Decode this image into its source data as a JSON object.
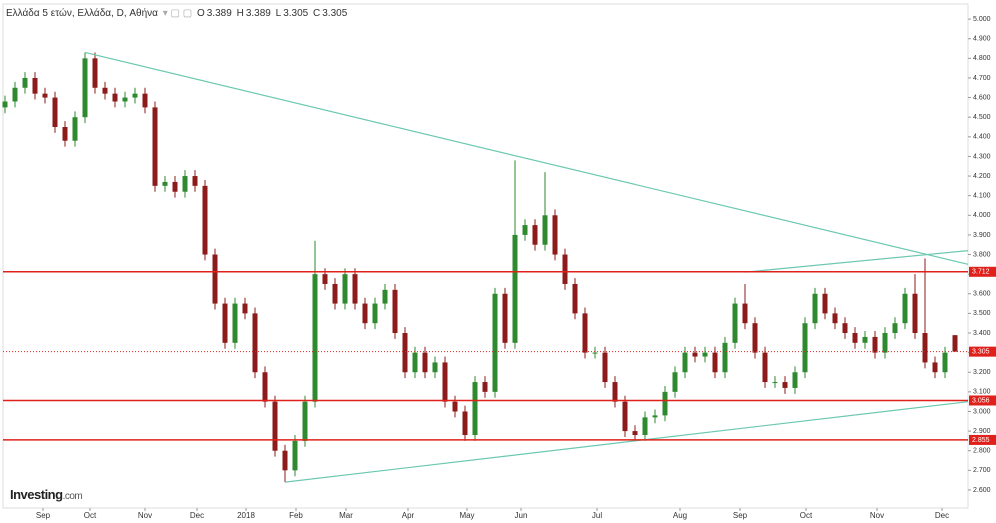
{
  "chart_data": {
    "type": "candlestick",
    "title": "Ελλάδα 5 ετών, Ελλάδα, D, Αθήνα",
    "ohlc_prefixes": [
      "O",
      "H",
      "L",
      "C"
    ],
    "brand": "Investing",
    "brand_suffix": ".com",
    "up_color": "#2f8a2f",
    "down_color": "#8e1b1b",
    "open": [
      4.55,
      4.58,
      4.65,
      4.7,
      4.62,
      4.6,
      4.45,
      4.38,
      4.5,
      4.8,
      4.65,
      4.62,
      4.58,
      4.6,
      4.62,
      4.55,
      4.15,
      4.17,
      4.12,
      4.2,
      4.15,
      3.8,
      3.55,
      3.35,
      3.55,
      3.5,
      3.2,
      3.05,
      2.8,
      2.7,
      2.85,
      3.05,
      3.7,
      3.65,
      3.55,
      3.7,
      3.55,
      3.45,
      3.55,
      3.62,
      3.4,
      3.2,
      3.3,
      3.2,
      3.25,
      3.05,
      3.0,
      2.88,
      3.15,
      3.1,
      3.6,
      3.35,
      3.9,
      3.95,
      3.85,
      4.0,
      3.8,
      3.65,
      3.5,
      3.3,
      3.3,
      3.15,
      3.05,
      2.9,
      2.88,
      2.97,
      2.98,
      3.1,
      3.2,
      3.3,
      3.28,
      3.3,
      3.2,
      3.35,
      3.55,
      3.45,
      3.3,
      3.15,
      3.15,
      3.12,
      3.2,
      3.45,
      3.6,
      3.5,
      3.45,
      3.4,
      3.35,
      3.38,
      3.3,
      3.4,
      3.45,
      3.6,
      3.4,
      3.25,
      3.2,
      3.389
    ],
    "high": [
      4.61,
      4.68,
      4.73,
      4.73,
      4.65,
      4.63,
      4.48,
      4.53,
      4.83,
      4.83,
      4.68,
      4.65,
      4.63,
      4.65,
      4.65,
      4.58,
      4.2,
      4.2,
      4.23,
      4.23,
      4.18,
      3.83,
      3.58,
      3.58,
      3.58,
      3.53,
      3.23,
      3.08,
      2.83,
      2.88,
      3.08,
      3.87,
      3.73,
      3.68,
      3.73,
      3.73,
      3.58,
      3.58,
      3.65,
      3.65,
      3.43,
      3.33,
      3.33,
      3.28,
      3.28,
      3.08,
      3.03,
      3.18,
      3.18,
      3.63,
      3.63,
      4.28,
      3.98,
      3.98,
      4.22,
      4.03,
      3.83,
      3.68,
      3.53,
      3.33,
      3.33,
      3.18,
      3.08,
      2.93,
      3.0,
      3.01,
      3.13,
      3.23,
      3.33,
      3.33,
      3.33,
      3.33,
      3.38,
      3.58,
      3.65,
      3.48,
      3.33,
      3.18,
      3.18,
      3.23,
      3.48,
      3.63,
      3.63,
      3.53,
      3.48,
      3.43,
      3.41,
      3.41,
      3.43,
      3.48,
      3.63,
      3.7,
      3.78,
      3.28,
      3.33,
      3.389
    ],
    "low": [
      4.52,
      4.55,
      4.62,
      4.59,
      4.57,
      4.42,
      4.35,
      4.35,
      4.47,
      4.62,
      4.59,
      4.55,
      4.55,
      4.57,
      4.52,
      4.12,
      4.12,
      4.09,
      4.09,
      4.12,
      3.77,
      3.52,
      3.32,
      3.32,
      3.47,
      3.17,
      3.02,
      2.77,
      2.64,
      2.67,
      2.82,
      3.02,
      3.62,
      3.52,
      3.52,
      3.52,
      3.42,
      3.42,
      3.52,
      3.37,
      3.17,
      3.17,
      3.17,
      3.17,
      3.02,
      2.97,
      2.85,
      2.85,
      3.07,
      3.07,
      3.32,
      3.32,
      3.87,
      3.82,
      3.82,
      3.77,
      3.62,
      3.47,
      3.27,
      3.27,
      3.12,
      3.02,
      2.87,
      2.85,
      2.85,
      2.94,
      2.95,
      3.07,
      3.17,
      3.25,
      3.25,
      3.17,
      3.17,
      3.32,
      3.42,
      3.27,
      3.12,
      3.12,
      3.09,
      3.09,
      3.17,
      3.42,
      3.47,
      3.42,
      3.37,
      3.32,
      3.32,
      3.27,
      3.27,
      3.37,
      3.42,
      3.37,
      3.22,
      3.17,
      3.17,
      3.305
    ],
    "close": [
      4.58,
      4.65,
      4.7,
      4.62,
      4.6,
      4.45,
      4.38,
      4.5,
      4.8,
      4.65,
      4.62,
      4.58,
      4.6,
      4.62,
      4.55,
      4.15,
      4.17,
      4.12,
      4.2,
      4.15,
      3.8,
      3.55,
      3.35,
      3.55,
      3.5,
      3.2,
      3.05,
      2.8,
      2.7,
      2.85,
      3.05,
      3.7,
      3.65,
      3.55,
      3.7,
      3.55,
      3.45,
      3.55,
      3.62,
      3.4,
      3.2,
      3.3,
      3.2,
      3.25,
      3.05,
      3.0,
      2.88,
      3.15,
      3.1,
      3.6,
      3.35,
      3.9,
      3.95,
      3.85,
      4.0,
      3.8,
      3.65,
      3.5,
      3.3,
      3.3,
      3.15,
      3.05,
      2.9,
      2.88,
      2.97,
      2.98,
      3.1,
      3.2,
      3.3,
      3.28,
      3.3,
      3.2,
      3.35,
      3.55,
      3.45,
      3.3,
      3.15,
      3.15,
      3.12,
      3.2,
      3.45,
      3.6,
      3.5,
      3.45,
      3.4,
      3.35,
      3.38,
      3.3,
      3.4,
      3.45,
      3.6,
      3.4,
      3.25,
      3.2,
      3.3,
      3.305
    ],
    "xlim": [
      -0.2,
      96.3
    ],
    "xticks": [
      {
        "value": 3.8,
        "label": "Sep"
      },
      {
        "value": 8.5,
        "label": "Oct"
      },
      {
        "value": 14,
        "label": "Nov"
      },
      {
        "value": 19.2,
        "label": "Dec"
      },
      {
        "value": 24.1,
        "label": "2018"
      },
      {
        "value": 29.1,
        "label": "Feb"
      },
      {
        "value": 34.1,
        "label": "Mar"
      },
      {
        "value": 40.3,
        "label": "Apr"
      },
      {
        "value": 46.2,
        "label": "May"
      },
      {
        "value": 51.6,
        "label": "Jun"
      },
      {
        "value": 59.2,
        "label": "Jul"
      },
      {
        "value": 67.5,
        "label": "Aug"
      },
      {
        "value": 73.5,
        "label": "Sep"
      },
      {
        "value": 80.1,
        "label": "Oct"
      },
      {
        "value": 87.2,
        "label": "Nov"
      },
      {
        "value": 93.7,
        "label": "Dec"
      }
    ],
    "ylim": [
      2.508,
      5.077
    ],
    "yticks": [
      {
        "value": 2.6,
        "label": "2.600"
      },
      {
        "value": 2.7,
        "label": "2.700"
      },
      {
        "value": 2.8,
        "label": "2.800"
      },
      {
        "value": 2.9,
        "label": "2.900"
      },
      {
        "value": 3.0,
        "label": "3.000"
      },
      {
        "value": 3.1,
        "label": "3.100"
      },
      {
        "value": 3.2,
        "label": "3.200"
      },
      {
        "value": 3.3,
        "label": "3.300"
      },
      {
        "value": 3.4,
        "label": "3.400"
      },
      {
        "value": 3.5,
        "label": "3.500"
      },
      {
        "value": 3.6,
        "label": "3.600"
      },
      {
        "value": 3.7,
        "label": "3.700"
      },
      {
        "value": 3.8,
        "label": "3.800"
      },
      {
        "value": 3.9,
        "label": "3.900"
      },
      {
        "value": 4.0,
        "label": "4.000"
      },
      {
        "value": 4.1,
        "label": "4.100"
      },
      {
        "value": 4.2,
        "label": "4.200"
      },
      {
        "value": 4.3,
        "label": "4.300"
      },
      {
        "value": 4.4,
        "label": "4.400"
      },
      {
        "value": 4.5,
        "label": "4.500"
      },
      {
        "value": 4.6,
        "label": "4.600"
      },
      {
        "value": 4.7,
        "label": "4.700"
      },
      {
        "value": 4.8,
        "label": "4.800"
      },
      {
        "value": 4.9,
        "label": "4.900"
      },
      {
        "value": 5.0,
        "label": "5.000"
      }
    ],
    "levels": [
      {
        "value": 3.712,
        "color": "#e0201a",
        "dotted": false
      },
      {
        "value": 3.305,
        "color": "#e0201a",
        "dotted": true
      },
      {
        "value": 3.056,
        "color": "#e0201a",
        "dotted": false
      },
      {
        "value": 2.855,
        "color": "#e0201a",
        "dotted": false
      }
    ],
    "trendlines": [
      {
        "x": [
          8,
          96.3
        ],
        "y": [
          4.83,
          3.75
        ],
        "color": "#6cc8b0"
      },
      {
        "x": [
          28,
          96.3
        ],
        "y": [
          2.64,
          3.05
        ],
        "color": "#6cc8b0"
      },
      {
        "x": [
          74,
          96.3
        ],
        "y": [
          3.71,
          3.82
        ],
        "color": "#6cc8b0"
      }
    ]
  }
}
